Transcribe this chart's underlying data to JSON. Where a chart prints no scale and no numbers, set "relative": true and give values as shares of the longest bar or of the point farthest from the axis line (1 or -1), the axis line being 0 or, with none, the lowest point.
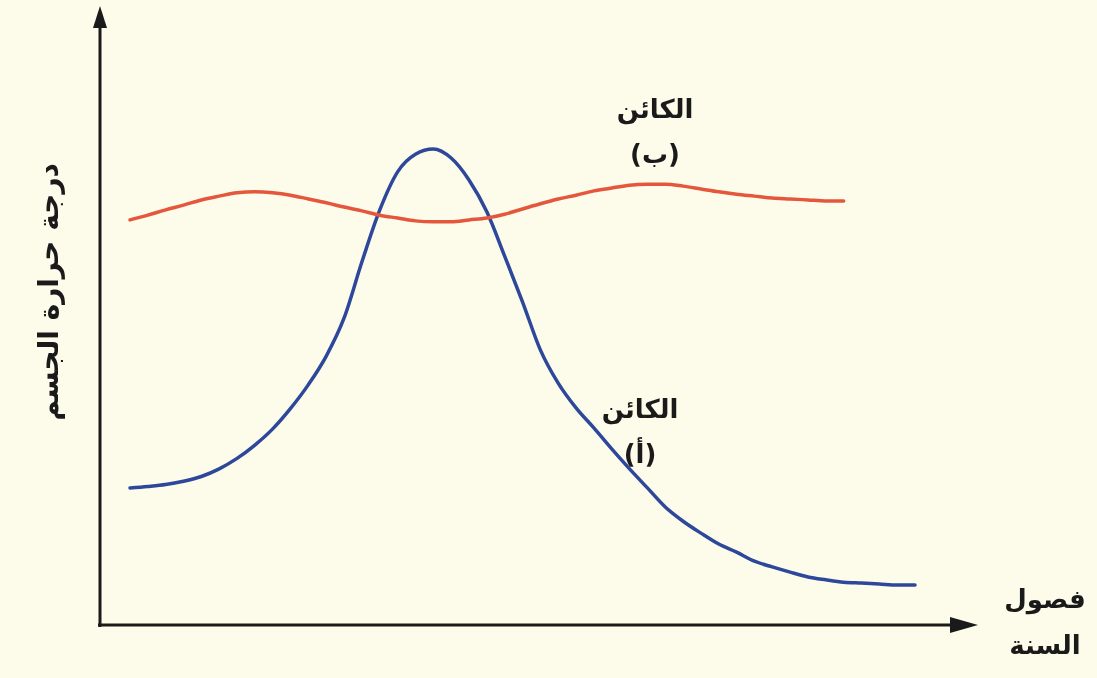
{
  "chart_data": {
    "type": "line",
    "relative": true,
    "xlabel": "فصول السنة",
    "ylabel": "درجة حرارة الجسم",
    "categories": [
      null,
      null,
      null,
      null,
      null,
      null,
      null,
      null,
      null,
      null,
      null,
      null,
      null,
      null,
      null,
      null,
      null,
      null,
      null,
      null,
      null,
      null,
      null,
      null,
      null,
      null,
      null,
      null,
      null,
      null,
      null,
      null,
      null,
      null,
      null,
      null,
      null,
      null,
      null,
      null,
      null,
      null,
      null,
      null,
      null
    ],
    "series": [
      {
        "name": "الكائن (أ)",
        "color": "#2d479b",
        "values": [
          0.288,
          0.291,
          0.295,
          0.302,
          0.312,
          0.328,
          0.35,
          0.378,
          0.412,
          0.455,
          0.505,
          0.565,
          0.645,
          0.763,
          0.872,
          0.952,
          0.989,
          1,
          0.981,
          0.935,
          0.868,
          0.775,
          0.679,
          0.578,
          0.508,
          0.456,
          0.414,
          0.37,
          0.328,
          0.288,
          0.248,
          0.218,
          0.193,
          0.17,
          0.153,
          0.134,
          0.122,
          0.111,
          0.101,
          0.095,
          0.09,
          0.088,
          0.086,
          0.084,
          0.084
        ]
      },
      {
        "name": "الكائن (ب)",
        "color": "#e4573d",
        "values": [
          0.851,
          0.861,
          0.872,
          0.882,
          0.893,
          0.901,
          0.908,
          0.91,
          0.908,
          0.903,
          0.895,
          0.887,
          0.878,
          0.87,
          0.861,
          0.855,
          0.849,
          0.847,
          0.847,
          0.851,
          0.855,
          0.863,
          0.874,
          0.885,
          0.895,
          0.903,
          0.912,
          0.918,
          0.924,
          0.926,
          0.926,
          0.922,
          0.916,
          0.91,
          0.905,
          0.901,
          0.897,
          0.895,
          0.893,
          0.891,
          0.891,
          null,
          null,
          null,
          null
        ]
      }
    ]
  }
}
